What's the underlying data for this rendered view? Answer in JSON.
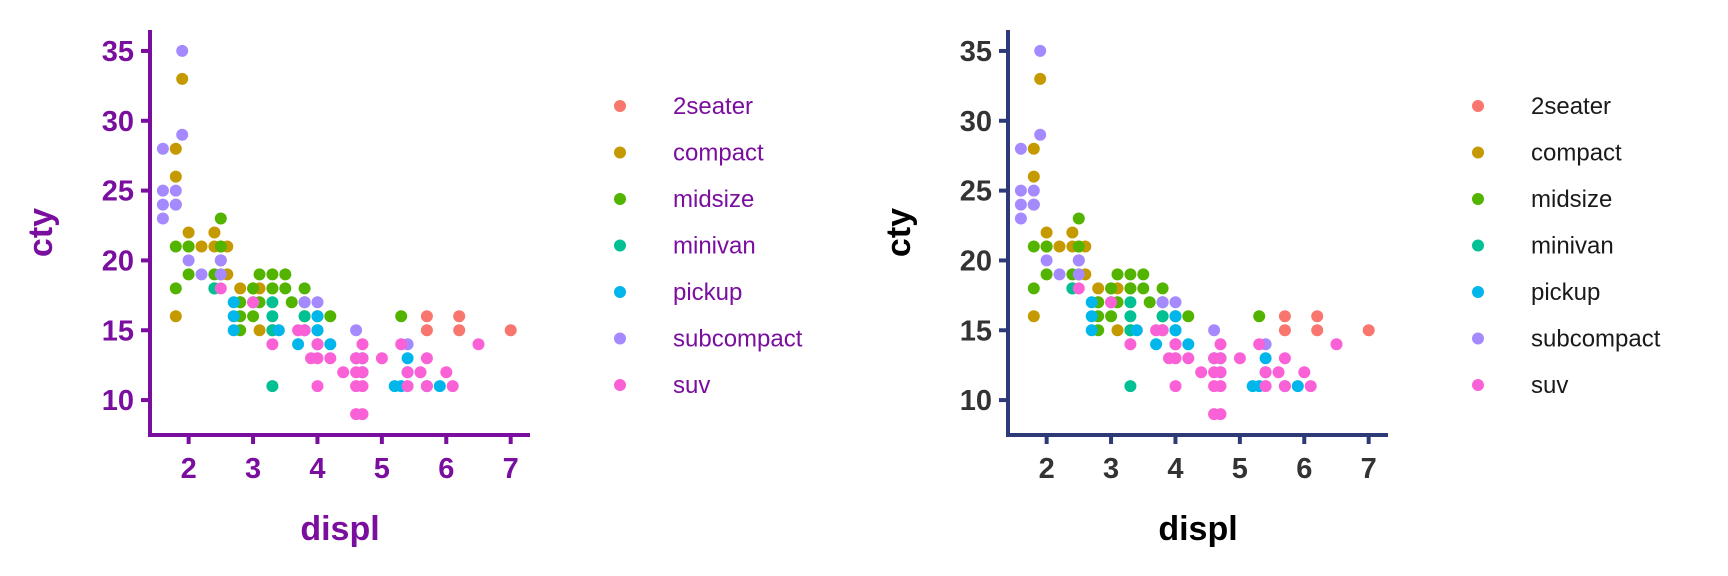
{
  "chart_data": [
    {
      "type": "scatter",
      "title": "",
      "xlabel": "displ",
      "ylabel": "cty",
      "xlim": [
        1.4,
        7.3
      ],
      "ylim": [
        7.5,
        36.5
      ],
      "xticks": [
        "2",
        "3",
        "4",
        "5",
        "6",
        "7"
      ],
      "yticks": [
        "10",
        "15",
        "20",
        "25",
        "30",
        "35"
      ],
      "grid": false,
      "legend_position": "right",
      "theme_color": "#7A0E9E",
      "series": [
        {
          "name": "2seater",
          "color": "#F8766D",
          "points": [
            [
              5.7,
              16
            ],
            [
              5.7,
              15
            ],
            [
              6.2,
              16
            ],
            [
              6.2,
              15
            ],
            [
              7.0,
              15
            ]
          ]
        },
        {
          "name": "compact",
          "color": "#C49A00",
          "points": [
            [
              1.8,
              16
            ],
            [
              1.8,
              24
            ],
            [
              1.8,
              26
            ],
            [
              1.8,
              28
            ],
            [
              1.9,
              33
            ],
            [
              2.0,
              22
            ],
            [
              2.0,
              21
            ],
            [
              2.2,
              21
            ],
            [
              2.4,
              22
            ],
            [
              2.4,
              21
            ],
            [
              2.5,
              21
            ],
            [
              2.5,
              20
            ],
            [
              2.5,
              19
            ],
            [
              2.6,
              21
            ],
            [
              2.6,
              19
            ],
            [
              2.8,
              18
            ],
            [
              2.8,
              17
            ],
            [
              3.0,
              18
            ],
            [
              3.1,
              18
            ],
            [
              3.3,
              18
            ],
            [
              3.3,
              15
            ],
            [
              3.1,
              15
            ]
          ]
        },
        {
          "name": "midsize",
          "color": "#53B400",
          "points": [
            [
              1.8,
              21
            ],
            [
              1.8,
              18
            ],
            [
              2.0,
              21
            ],
            [
              2.0,
              19
            ],
            [
              2.4,
              19
            ],
            [
              2.4,
              18
            ],
            [
              2.5,
              23
            ],
            [
              2.5,
              21
            ],
            [
              2.8,
              17
            ],
            [
              2.8,
              16
            ],
            [
              2.8,
              15
            ],
            [
              3.0,
              18
            ],
            [
              3.1,
              17
            ],
            [
              3.1,
              19
            ],
            [
              3.3,
              19
            ],
            [
              3.3,
              18
            ],
            [
              3.5,
              19
            ],
            [
              3.5,
              18
            ],
            [
              3.6,
              17
            ],
            [
              3.8,
              18
            ],
            [
              3.8,
              17
            ],
            [
              3.8,
              16
            ],
            [
              4.0,
              16
            ],
            [
              4.2,
              16
            ],
            [
              5.3,
              16
            ],
            [
              3.0,
              16
            ]
          ]
        },
        {
          "name": "minivan",
          "color": "#00C094",
          "points": [
            [
              2.4,
              18
            ],
            [
              3.0,
              17
            ],
            [
              3.3,
              17
            ],
            [
              3.3,
              16
            ],
            [
              3.3,
              11
            ],
            [
              3.8,
              15
            ],
            [
              4.0,
              15
            ],
            [
              3.8,
              16
            ],
            [
              3.3,
              15
            ]
          ]
        },
        {
          "name": "pickup",
          "color": "#00B6EB",
          "points": [
            [
              2.7,
              17
            ],
            [
              2.7,
              16
            ],
            [
              2.7,
              15
            ],
            [
              3.4,
              15
            ],
            [
              3.7,
              14
            ],
            [
              4.0,
              14
            ],
            [
              4.0,
              15
            ],
            [
              4.0,
              16
            ],
            [
              4.2,
              14
            ],
            [
              4.7,
              13
            ],
            [
              4.7,
              12
            ],
            [
              5.2,
              11
            ],
            [
              5.3,
              11
            ],
            [
              5.4,
              13
            ],
            [
              5.4,
              12
            ],
            [
              5.7,
              11
            ],
            [
              5.9,
              11
            ],
            [
              4.6,
              13
            ]
          ]
        },
        {
          "name": "subcompact",
          "color": "#A58AFF",
          "points": [
            [
              1.6,
              28
            ],
            [
              1.6,
              25
            ],
            [
              1.6,
              24
            ],
            [
              1.6,
              23
            ],
            [
              1.8,
              25
            ],
            [
              1.8,
              24
            ],
            [
              1.9,
              35
            ],
            [
              1.9,
              29
            ],
            [
              2.0,
              20
            ],
            [
              2.2,
              19
            ],
            [
              2.5,
              20
            ],
            [
              2.5,
              19
            ],
            [
              3.8,
              17
            ],
            [
              4.0,
              17
            ],
            [
              4.6,
              15
            ],
            [
              5.4,
              14
            ]
          ]
        },
        {
          "name": "suv",
          "color": "#FB61D7",
          "points": [
            [
              2.5,
              18
            ],
            [
              3.3,
              14
            ],
            [
              3.0,
              17
            ],
            [
              3.7,
              15
            ],
            [
              4.0,
              13
            ],
            [
              4.0,
              11
            ],
            [
              4.0,
              14
            ],
            [
              4.2,
              13
            ],
            [
              4.4,
              12
            ],
            [
              4.6,
              12
            ],
            [
              4.6,
              13
            ],
            [
              4.6,
              11
            ],
            [
              4.7,
              14
            ],
            [
              4.7,
              11
            ],
            [
              4.7,
              9
            ],
            [
              4.7,
              13
            ],
            [
              4.7,
              12
            ],
            [
              5.0,
              13
            ],
            [
              5.3,
              14
            ],
            [
              5.4,
              11
            ],
            [
              5.4,
              12
            ],
            [
              5.6,
              12
            ],
            [
              5.7,
              13
            ],
            [
              5.7,
              11
            ],
            [
              6.0,
              12
            ],
            [
              6.1,
              11
            ],
            [
              6.5,
              14
            ],
            [
              3.9,
              13
            ],
            [
              3.8,
              15
            ],
            [
              4.6,
              9
            ]
          ]
        }
      ]
    },
    {
      "type": "scatter",
      "title": "",
      "xlabel": "displ",
      "ylabel": "cty",
      "xlim": [
        1.4,
        7.3
      ],
      "ylim": [
        7.5,
        36.5
      ],
      "xticks": [
        "2",
        "3",
        "4",
        "5",
        "6",
        "7"
      ],
      "yticks": [
        "10",
        "15",
        "20",
        "25",
        "30",
        "35"
      ],
      "grid": false,
      "legend_position": "right",
      "theme_color": "#2E3A78",
      "series": [
        {
          "name": "2seater",
          "color": "#F8766D",
          "points": [
            [
              5.7,
              16
            ],
            [
              5.7,
              15
            ],
            [
              6.2,
              16
            ],
            [
              6.2,
              15
            ],
            [
              7.0,
              15
            ]
          ]
        },
        {
          "name": "compact",
          "color": "#C49A00",
          "points": [
            [
              1.8,
              16
            ],
            [
              1.8,
              24
            ],
            [
              1.8,
              26
            ],
            [
              1.8,
              28
            ],
            [
              1.9,
              33
            ],
            [
              2.0,
              22
            ],
            [
              2.0,
              21
            ],
            [
              2.2,
              21
            ],
            [
              2.4,
              22
            ],
            [
              2.4,
              21
            ],
            [
              2.5,
              21
            ],
            [
              2.5,
              20
            ],
            [
              2.5,
              19
            ],
            [
              2.6,
              21
            ],
            [
              2.6,
              19
            ],
            [
              2.8,
              18
            ],
            [
              2.8,
              17
            ],
            [
              3.0,
              18
            ],
            [
              3.1,
              18
            ],
            [
              3.3,
              18
            ],
            [
              3.3,
              15
            ],
            [
              3.1,
              15
            ]
          ]
        },
        {
          "name": "midsize",
          "color": "#53B400",
          "points": [
            [
              1.8,
              21
            ],
            [
              1.8,
              18
            ],
            [
              2.0,
              21
            ],
            [
              2.0,
              19
            ],
            [
              2.4,
              19
            ],
            [
              2.4,
              18
            ],
            [
              2.5,
              23
            ],
            [
              2.5,
              21
            ],
            [
              2.8,
              17
            ],
            [
              2.8,
              16
            ],
            [
              2.8,
              15
            ],
            [
              3.0,
              18
            ],
            [
              3.1,
              17
            ],
            [
              3.1,
              19
            ],
            [
              3.3,
              19
            ],
            [
              3.3,
              18
            ],
            [
              3.5,
              19
            ],
            [
              3.5,
              18
            ],
            [
              3.6,
              17
            ],
            [
              3.8,
              18
            ],
            [
              3.8,
              17
            ],
            [
              3.8,
              16
            ],
            [
              4.0,
              16
            ],
            [
              4.2,
              16
            ],
            [
              5.3,
              16
            ],
            [
              3.0,
              16
            ]
          ]
        },
        {
          "name": "minivan",
          "color": "#00C094",
          "points": [
            [
              2.4,
              18
            ],
            [
              3.0,
              17
            ],
            [
              3.3,
              17
            ],
            [
              3.3,
              16
            ],
            [
              3.3,
              11
            ],
            [
              3.8,
              15
            ],
            [
              4.0,
              15
            ],
            [
              3.8,
              16
            ],
            [
              3.3,
              15
            ]
          ]
        },
        {
          "name": "pickup",
          "color": "#00B6EB",
          "points": [
            [
              2.7,
              17
            ],
            [
              2.7,
              16
            ],
            [
              2.7,
              15
            ],
            [
              3.4,
              15
            ],
            [
              3.7,
              14
            ],
            [
              4.0,
              14
            ],
            [
              4.0,
              15
            ],
            [
              4.0,
              16
            ],
            [
              4.2,
              14
            ],
            [
              4.7,
              13
            ],
            [
              4.7,
              12
            ],
            [
              5.2,
              11
            ],
            [
              5.3,
              11
            ],
            [
              5.4,
              13
            ],
            [
              5.4,
              12
            ],
            [
              5.7,
              11
            ],
            [
              5.9,
              11
            ],
            [
              4.6,
              13
            ]
          ]
        },
        {
          "name": "subcompact",
          "color": "#A58AFF",
          "points": [
            [
              1.6,
              28
            ],
            [
              1.6,
              25
            ],
            [
              1.6,
              24
            ],
            [
              1.6,
              23
            ],
            [
              1.8,
              25
            ],
            [
              1.8,
              24
            ],
            [
              1.9,
              35
            ],
            [
              1.9,
              29
            ],
            [
              2.0,
              20
            ],
            [
              2.2,
              19
            ],
            [
              2.5,
              20
            ],
            [
              2.5,
              19
            ],
            [
              3.8,
              17
            ],
            [
              4.0,
              17
            ],
            [
              4.6,
              15
            ],
            [
              5.4,
              14
            ]
          ]
        },
        {
          "name": "suv",
          "color": "#FB61D7",
          "points": [
            [
              2.5,
              18
            ],
            [
              3.3,
              14
            ],
            [
              3.0,
              17
            ],
            [
              3.7,
              15
            ],
            [
              4.0,
              13
            ],
            [
              4.0,
              11
            ],
            [
              4.0,
              14
            ],
            [
              4.2,
              13
            ],
            [
              4.4,
              12
            ],
            [
              4.6,
              12
            ],
            [
              4.6,
              13
            ],
            [
              4.6,
              11
            ],
            [
              4.7,
              14
            ],
            [
              4.7,
              11
            ],
            [
              4.7,
              9
            ],
            [
              4.7,
              13
            ],
            [
              4.7,
              12
            ],
            [
              5.0,
              13
            ],
            [
              5.3,
              14
            ],
            [
              5.4,
              11
            ],
            [
              5.4,
              12
            ],
            [
              5.6,
              12
            ],
            [
              5.7,
              13
            ],
            [
              5.7,
              11
            ],
            [
              6.0,
              12
            ],
            [
              6.1,
              11
            ],
            [
              6.5,
              14
            ],
            [
              3.9,
              13
            ],
            [
              3.8,
              15
            ],
            [
              4.6,
              9
            ]
          ]
        }
      ]
    }
  ]
}
